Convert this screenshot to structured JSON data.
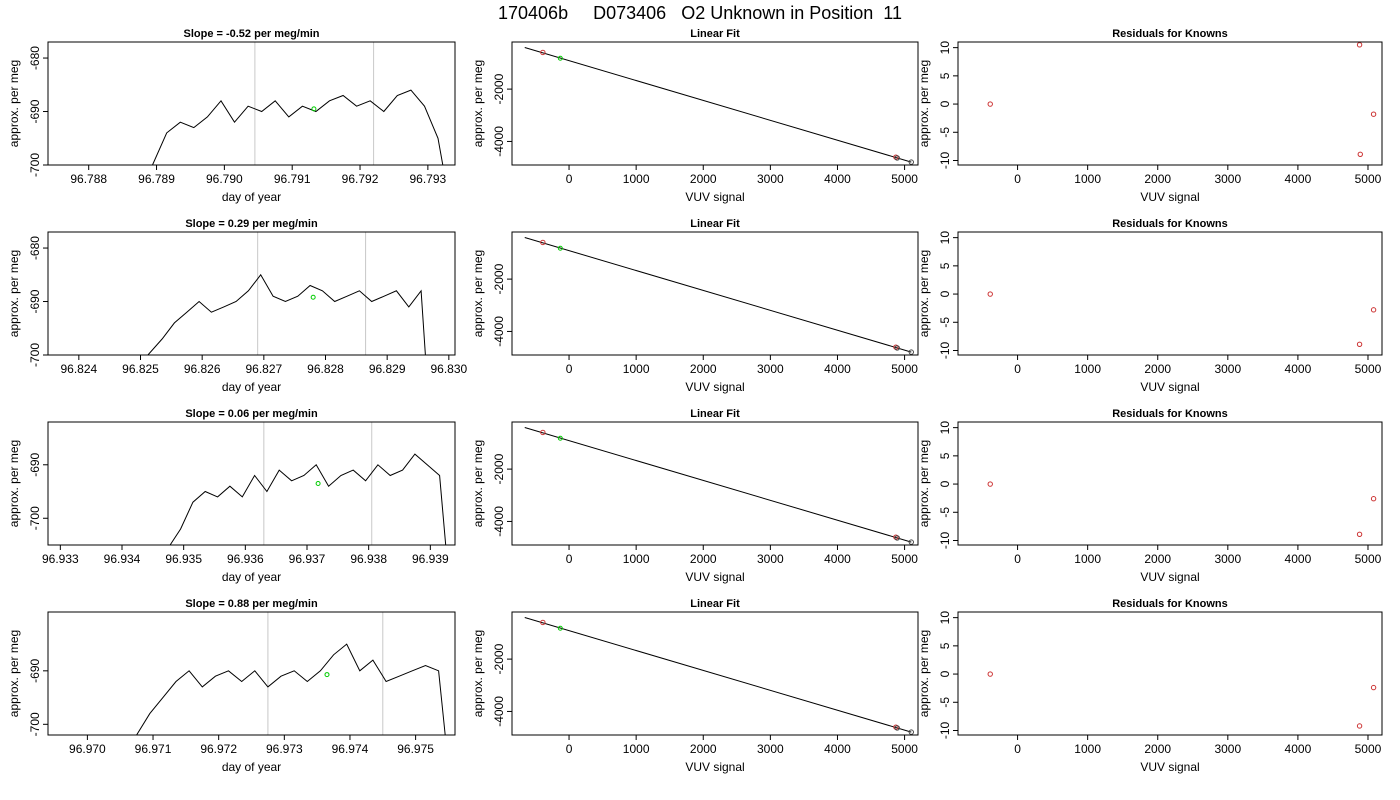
{
  "page": {
    "title_parts": [
      "170406b",
      "D073406",
      "O2 Unknown in Position  11"
    ]
  },
  "chart_data": [
    {
      "type": "line",
      "panel": "timeseries",
      "title": "Slope =  -0.52  per meg/min",
      "xlabel": "day of year",
      "ylabel": "approx. per meg",
      "xlim": [
        96.7874,
        96.7934
      ],
      "ylim": [
        -700,
        -677
      ],
      "xticks": [
        "96.788",
        "96.789",
        "96.790",
        "96.791",
        "96.792",
        "96.793"
      ],
      "xtick_values": [
        96.788,
        96.789,
        96.79,
        96.791,
        96.792,
        96.793
      ],
      "yticks": [
        "-700",
        "-690",
        "-680"
      ],
      "ytick_values": [
        -700,
        -690,
        -680
      ],
      "vlines": [
        96.79045,
        96.7922
      ],
      "marker": {
        "x": 96.79132,
        "y": -689.5,
        "color": "#00cc00"
      },
      "series": {
        "x": [
          96.78894,
          96.78915,
          96.78935,
          96.78955,
          96.78975,
          96.78995,
          96.79015,
          96.79035,
          96.79055,
          96.79075,
          96.79095,
          96.79115,
          96.79135,
          96.79155,
          96.79175,
          96.79195,
          96.79215,
          96.79235,
          96.79255,
          96.79275,
          96.79295,
          96.79315,
          96.79322
        ],
        "y": [
          -700,
          -694,
          -692,
          -693,
          -691,
          -688,
          -692,
          -689,
          -690,
          -688,
          -691,
          -689,
          -690,
          -688,
          -687,
          -689,
          -688,
          -690,
          -687,
          -686,
          -689,
          -695,
          -700
        ]
      }
    },
    {
      "type": "scatter",
      "panel": "fit",
      "title": "Linear Fit",
      "xlabel": "VUV signal",
      "ylabel": "approx. per meg",
      "xlim": [
        -850,
        5200
      ],
      "ylim": [
        -4900,
        -200
      ],
      "xticks": [
        "0",
        "1000",
        "2000",
        "3000",
        "4000",
        "5000"
      ],
      "xtick_values": [
        0,
        1000,
        2000,
        3000,
        4000,
        5000
      ],
      "yticks": [
        "-4000",
        "-2000"
      ],
      "ytick_values": [
        -4000,
        -2000
      ],
      "line": {
        "x": [
          -660,
          5100
        ],
        "y": [
          -410,
          -4790
        ]
      },
      "points": {
        "x": [
          -390,
          4870,
          4890,
          5100
        ],
        "y": [
          -600,
          -4600,
          -4630,
          -4790
        ],
        "colors": [
          "#cc3333",
          "#cc3333",
          "#444444",
          "#444444"
        ]
      },
      "marker": {
        "x": -130,
        "y": -820,
        "color": "#00cc00"
      }
    },
    {
      "type": "scatter",
      "panel": "residuals",
      "title": "Residuals for Knowns",
      "xlabel": "VUV signal",
      "ylabel": "approx. per meg",
      "xlim": [
        -850,
        5200
      ],
      "ylim": [
        -10.8,
        11
      ],
      "xticks": [
        "0",
        "1000",
        "2000",
        "3000",
        "4000",
        "5000"
      ],
      "xtick_values": [
        0,
        1000,
        2000,
        3000,
        4000,
        5000
      ],
      "yticks": [
        "-10",
        "-5",
        "0",
        "5",
        "10"
      ],
      "ytick_values": [
        -10,
        -5,
        0,
        5,
        10
      ],
      "points": {
        "x": [
          -390,
          4880,
          4890,
          5080
        ],
        "y": [
          0,
          10.5,
          -8.9,
          -1.8
        ],
        "color": "#cc3333"
      }
    },
    {
      "type": "line",
      "panel": "timeseries",
      "title": "Slope =  0.29  per meg/min",
      "xlabel": "day of year",
      "ylabel": "approx. per meg",
      "xlim": [
        96.8235,
        96.8301
      ],
      "ylim": [
        -700,
        -677
      ],
      "xticks": [
        "96.824",
        "96.825",
        "96.826",
        "96.827",
        "96.828",
        "96.829",
        "96.830"
      ],
      "xtick_values": [
        96.824,
        96.825,
        96.826,
        96.827,
        96.828,
        96.829,
        96.83
      ],
      "yticks": [
        "-700",
        "-690",
        "-680"
      ],
      "ytick_values": [
        -700,
        -690,
        -680
      ],
      "vlines": [
        96.8269,
        96.82865
      ],
      "marker": {
        "x": 96.8278,
        "y": -689.2,
        "color": "#00cc00"
      },
      "series": {
        "x": [
          96.82512,
          96.82535,
          96.82555,
          96.82575,
          96.82595,
          96.82615,
          96.82635,
          96.82655,
          96.82675,
          96.82695,
          96.82715,
          96.82735,
          96.82755,
          96.82775,
          96.82795,
          96.82815,
          96.82835,
          96.82855,
          96.82875,
          96.82895,
          96.82915,
          96.82935,
          96.82955,
          96.82962
        ],
        "y": [
          -700,
          -697,
          -694,
          -692,
          -690,
          -692,
          -691,
          -690,
          -688,
          -685,
          -689,
          -690,
          -689,
          -687,
          -688,
          -690,
          -689,
          -688,
          -690,
          -689,
          -688,
          -691,
          -688,
          -700
        ]
      }
    },
    {
      "type": "scatter",
      "panel": "fit",
      "title": "Linear Fit",
      "xlabel": "VUV signal",
      "ylabel": "approx. per meg",
      "xlim": [
        -850,
        5200
      ],
      "ylim": [
        -4900,
        -200
      ],
      "xticks": [
        "0",
        "1000",
        "2000",
        "3000",
        "4000",
        "5000"
      ],
      "xtick_values": [
        0,
        1000,
        2000,
        3000,
        4000,
        5000
      ],
      "yticks": [
        "-4000",
        "-2000"
      ],
      "ytick_values": [
        -4000,
        -2000
      ],
      "line": {
        "x": [
          -660,
          5100
        ],
        "y": [
          -410,
          -4790
        ]
      },
      "points": {
        "x": [
          -390,
          4870,
          4890,
          5100
        ],
        "y": [
          -600,
          -4600,
          -4630,
          -4790
        ],
        "colors": [
          "#cc3333",
          "#cc3333",
          "#444444",
          "#444444"
        ]
      },
      "marker": {
        "x": -130,
        "y": -820,
        "color": "#00cc00"
      }
    },
    {
      "type": "scatter",
      "panel": "residuals",
      "title": "Residuals for Knowns",
      "xlabel": "VUV signal",
      "ylabel": "approx. per meg",
      "xlim": [
        -850,
        5200
      ],
      "ylim": [
        -10.8,
        11
      ],
      "xticks": [
        "0",
        "1000",
        "2000",
        "3000",
        "4000",
        "5000"
      ],
      "xtick_values": [
        0,
        1000,
        2000,
        3000,
        4000,
        5000
      ],
      "yticks": [
        "-10",
        "-5",
        "0",
        "5",
        "10"
      ],
      "ytick_values": [
        -10,
        -5,
        0,
        5,
        10
      ],
      "points": {
        "x": [
          -390,
          4880,
          5080
        ],
        "y": [
          0,
          -8.9,
          -2.8
        ],
        "color": "#cc3333"
      }
    },
    {
      "type": "line",
      "panel": "timeseries",
      "title": "Slope =  0.06  per meg/min",
      "xlabel": "day of year",
      "ylabel": "approx. per meg",
      "xlim": [
        96.9328,
        96.9394
      ],
      "ylim": [
        -705,
        -682
      ],
      "xticks": [
        "96.933",
        "96.934",
        "96.935",
        "96.936",
        "96.937",
        "96.938",
        "96.939"
      ],
      "xtick_values": [
        96.933,
        96.934,
        96.935,
        96.936,
        96.937,
        96.938,
        96.939
      ],
      "yticks": [
        "-700",
        "-690"
      ],
      "ytick_values": [
        -700,
        -690
      ],
      "vlines": [
        96.9363,
        96.93805
      ],
      "marker": {
        "x": 96.93718,
        "y": -693.5,
        "color": "#00cc00"
      },
      "series": {
        "x": [
          96.93478,
          96.93495,
          96.93515,
          96.93535,
          96.93555,
          96.93575,
          96.93595,
          96.93615,
          96.93635,
          96.93655,
          96.93675,
          96.93695,
          96.93715,
          96.93735,
          96.93755,
          96.93775,
          96.93795,
          96.93815,
          96.93835,
          96.93855,
          96.93875,
          96.93895,
          96.93915,
          96.93925
        ],
        "y": [
          -705,
          -702,
          -697,
          -695,
          -696,
          -694,
          -696,
          -692,
          -695,
          -691,
          -693,
          -692,
          -690,
          -694,
          -692,
          -691,
          -693,
          -690,
          -692,
          -691,
          -688,
          -690,
          -692,
          -705
        ]
      }
    },
    {
      "type": "scatter",
      "panel": "fit",
      "title": "Linear Fit",
      "xlabel": "VUV signal",
      "ylabel": "approx. per meg",
      "xlim": [
        -850,
        5200
      ],
      "ylim": [
        -4900,
        -200
      ],
      "xticks": [
        "0",
        "1000",
        "2000",
        "3000",
        "4000",
        "5000"
      ],
      "xtick_values": [
        0,
        1000,
        2000,
        3000,
        4000,
        5000
      ],
      "yticks": [
        "-4000",
        "-2000"
      ],
      "ytick_values": [
        -4000,
        -2000
      ],
      "line": {
        "x": [
          -660,
          5100
        ],
        "y": [
          -410,
          -4790
        ]
      },
      "points": {
        "x": [
          -390,
          4870,
          4890,
          5100
        ],
        "y": [
          -600,
          -4600,
          -4630,
          -4790
        ],
        "colors": [
          "#cc3333",
          "#cc3333",
          "#444444",
          "#444444"
        ]
      },
      "marker": {
        "x": -130,
        "y": -820,
        "color": "#00cc00"
      }
    },
    {
      "type": "scatter",
      "panel": "residuals",
      "title": "Residuals for Knowns",
      "xlabel": "VUV signal",
      "ylabel": "approx. per meg",
      "xlim": [
        -850,
        5200
      ],
      "ylim": [
        -10.8,
        11
      ],
      "xticks": [
        "0",
        "1000",
        "2000",
        "3000",
        "4000",
        "5000"
      ],
      "xtick_values": [
        0,
        1000,
        2000,
        3000,
        4000,
        5000
      ],
      "yticks": [
        "-10",
        "-5",
        "0",
        "5",
        "10"
      ],
      "ytick_values": [
        -10,
        -5,
        0,
        5,
        10
      ],
      "points": {
        "x": [
          -390,
          4880,
          5080
        ],
        "y": [
          0,
          -8.9,
          -2.6
        ],
        "color": "#cc3333"
      }
    },
    {
      "type": "line",
      "panel": "timeseries",
      "title": "Slope =  0.88  per meg/min",
      "xlabel": "day of year",
      "ylabel": "approx. per meg",
      "xlim": [
        96.9694,
        96.9756
      ],
      "ylim": [
        -702,
        -679
      ],
      "xticks": [
        "96.970",
        "96.971",
        "96.972",
        "96.973",
        "96.974",
        "96.975"
      ],
      "xtick_values": [
        96.97,
        96.971,
        96.972,
        96.973,
        96.974,
        96.975
      ],
      "yticks": [
        "-700",
        "-690"
      ],
      "ytick_values": [
        -700,
        -690
      ],
      "vlines": [
        96.97275,
        96.9745
      ],
      "marker": {
        "x": 96.97365,
        "y": -690.7,
        "color": "#00cc00"
      },
      "series": {
        "x": [
          96.97075,
          96.97095,
          96.97115,
          96.97135,
          96.97155,
          96.97175,
          96.97195,
          96.97215,
          96.97235,
          96.97255,
          96.97275,
          96.97295,
          96.97315,
          96.97335,
          96.97355,
          96.97375,
          96.97395,
          96.97415,
          96.97435,
          96.97455,
          96.97475,
          96.97495,
          96.97515,
          96.97535,
          96.97545
        ],
        "y": [
          -702,
          -698,
          -695,
          -692,
          -690,
          -693,
          -691,
          -690,
          -692,
          -690,
          -693,
          -691,
          -690,
          -692,
          -690,
          -687,
          -685,
          -690,
          -688,
          -692,
          -691,
          -690,
          -689,
          -690,
          -702
        ]
      }
    },
    {
      "type": "scatter",
      "panel": "fit",
      "title": "Linear Fit",
      "xlabel": "VUV signal",
      "ylabel": "approx. per meg",
      "xlim": [
        -850,
        5200
      ],
      "ylim": [
        -4900,
        -200
      ],
      "xticks": [
        "0",
        "1000",
        "2000",
        "3000",
        "4000",
        "5000"
      ],
      "xtick_values": [
        0,
        1000,
        2000,
        3000,
        4000,
        5000
      ],
      "yticks": [
        "-4000",
        "-2000"
      ],
      "ytick_values": [
        -4000,
        -2000
      ],
      "line": {
        "x": [
          -660,
          5100
        ],
        "y": [
          -410,
          -4790
        ]
      },
      "points": {
        "x": [
          -390,
          4870,
          4890,
          5100
        ],
        "y": [
          -600,
          -4600,
          -4630,
          -4790
        ],
        "colors": [
          "#cc3333",
          "#cc3333",
          "#444444",
          "#444444"
        ]
      },
      "marker": {
        "x": -130,
        "y": -820,
        "color": "#00cc00"
      }
    },
    {
      "type": "scatter",
      "panel": "residuals",
      "title": "Residuals for Knowns",
      "xlabel": "VUV signal",
      "ylabel": "approx. per meg",
      "xlim": [
        -850,
        5200
      ],
      "ylim": [
        -10.8,
        11
      ],
      "xticks": [
        "0",
        "1000",
        "2000",
        "3000",
        "4000",
        "5000"
      ],
      "xtick_values": [
        0,
        1000,
        2000,
        3000,
        4000,
        5000
      ],
      "yticks": [
        "-10",
        "-5",
        "0",
        "5",
        "10"
      ],
      "ytick_values": [
        -10,
        -5,
        0,
        5,
        10
      ],
      "points": {
        "x": [
          -390,
          4880,
          5080
        ],
        "y": [
          0,
          -9.2,
          -2.4
        ],
        "color": "#cc3333"
      }
    }
  ]
}
